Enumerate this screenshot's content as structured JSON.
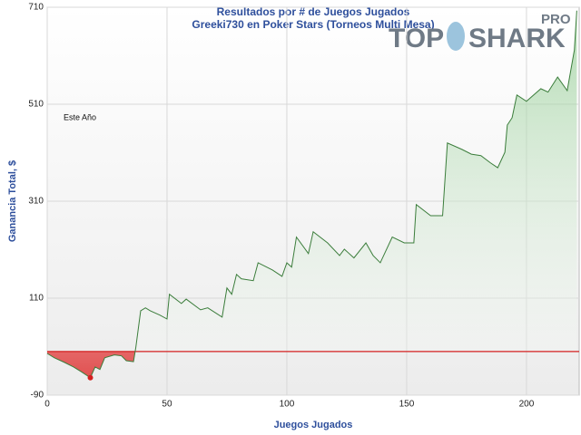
{
  "chart_data": {
    "type": "line",
    "title": "Resultados por # de Juegos Jugados",
    "subtitle": "Greeki730 en Poker Stars (Torneos Multi Mesa)",
    "annotation": "Este Año",
    "x_label": "Juegos Jugados",
    "y_label": "Ganancia Total, $",
    "logo": {
      "left": "TOP",
      "right": "SHARK",
      "sup": "PRO"
    },
    "xlim": [
      0,
      222
    ],
    "ylim": [
      -90,
      710
    ],
    "xticks": [
      0,
      50,
      100,
      150,
      200
    ],
    "yticks": [
      -90,
      110,
      310,
      510,
      710
    ],
    "grid": true,
    "color": "#3b7d3b",
    "negative_color": "#d42020",
    "x": [
      0,
      3,
      7,
      11,
      14,
      18,
      20,
      22,
      24,
      28,
      31,
      33,
      36,
      37,
      39,
      41,
      43,
      47,
      50,
      51,
      56,
      58,
      64,
      67,
      73,
      75,
      77,
      79,
      81,
      86,
      88,
      94,
      98,
      100,
      102,
      104,
      109,
      111,
      117,
      122,
      124,
      128,
      133,
      136,
      139,
      144,
      149,
      153,
      154,
      160,
      165,
      167,
      173,
      177,
      181,
      185,
      188,
      191,
      192,
      194,
      196,
      200,
      206,
      209,
      213,
      217,
      220,
      221
    ],
    "values": [
      -4,
      -13,
      -22,
      -32,
      -41,
      -54,
      -32,
      -37,
      -13,
      -7,
      -9,
      -19,
      -21,
      9,
      84,
      90,
      84,
      75,
      67,
      118,
      99,
      108,
      86,
      90,
      71,
      131,
      118,
      159,
      150,
      146,
      183,
      168,
      155,
      183,
      174,
      236,
      202,
      247,
      224,
      198,
      211,
      193,
      224,
      198,
      183,
      236,
      224,
      224,
      303,
      280,
      280,
      430,
      417,
      407,
      404,
      389,
      379,
      411,
      467,
      482,
      529,
      516,
      542,
      535,
      566,
      538,
      622,
      703
    ]
  }
}
